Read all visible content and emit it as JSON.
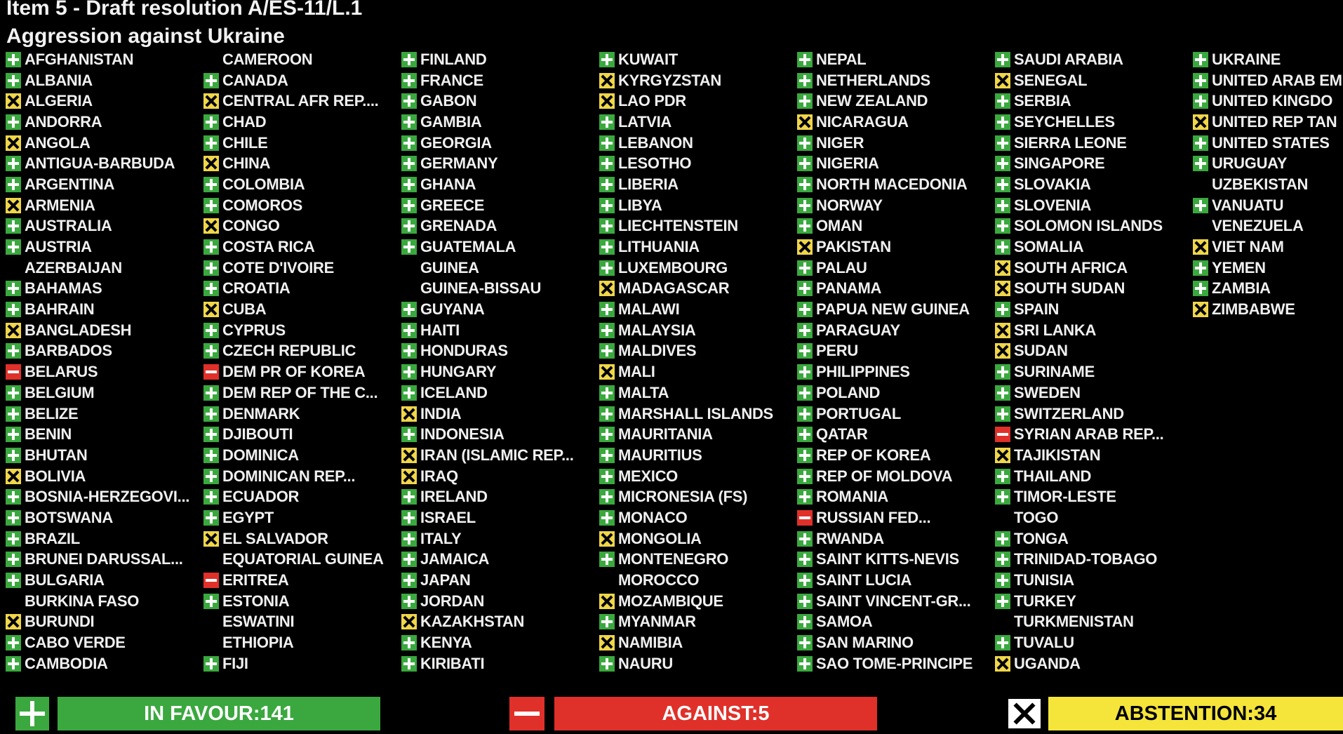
{
  "header": {
    "title": "Item 5 - Draft resolution A/ES-11/L.1",
    "subtitle": "Aggression against Ukraine"
  },
  "colors": {
    "yes": "#3aa83e",
    "no": "#e0302a",
    "abstain": "#efd64a",
    "board": "#000000"
  },
  "columns": [
    [
      {
        "name": "AFGHANISTAN",
        "vote": "Y"
      },
      {
        "name": "ALBANIA",
        "vote": "Y"
      },
      {
        "name": "ALGERIA",
        "vote": "A"
      },
      {
        "name": "ANDORRA",
        "vote": "Y"
      },
      {
        "name": "ANGOLA",
        "vote": "A"
      },
      {
        "name": "ANTIGUA-BARBUDA",
        "vote": "Y"
      },
      {
        "name": "ARGENTINA",
        "vote": "Y"
      },
      {
        "name": "ARMENIA",
        "vote": "A"
      },
      {
        "name": "AUSTRALIA",
        "vote": "Y"
      },
      {
        "name": "AUSTRIA",
        "vote": "Y"
      },
      {
        "name": "AZERBAIJAN",
        "vote": ""
      },
      {
        "name": "BAHAMAS",
        "vote": "Y"
      },
      {
        "name": "BAHRAIN",
        "vote": "Y"
      },
      {
        "name": "BANGLADESH",
        "vote": "A"
      },
      {
        "name": "BARBADOS",
        "vote": "Y"
      },
      {
        "name": "BELARUS",
        "vote": "N"
      },
      {
        "name": "BELGIUM",
        "vote": "Y"
      },
      {
        "name": "BELIZE",
        "vote": "Y"
      },
      {
        "name": "BENIN",
        "vote": "Y"
      },
      {
        "name": "BHUTAN",
        "vote": "Y"
      },
      {
        "name": "BOLIVIA",
        "vote": "A"
      },
      {
        "name": "BOSNIA-HERZEGOVI...",
        "vote": "Y"
      },
      {
        "name": "BOTSWANA",
        "vote": "Y"
      },
      {
        "name": "BRAZIL",
        "vote": "Y"
      },
      {
        "name": "BRUNEI DARUSSAL...",
        "vote": "Y"
      },
      {
        "name": "BULGARIA",
        "vote": "Y"
      },
      {
        "name": "BURKINA FASO",
        "vote": ""
      },
      {
        "name": "BURUNDI",
        "vote": "A"
      },
      {
        "name": "CABO VERDE",
        "vote": "Y"
      },
      {
        "name": "CAMBODIA",
        "vote": "Y"
      }
    ],
    [
      {
        "name": "CAMEROON",
        "vote": ""
      },
      {
        "name": "CANADA",
        "vote": "Y"
      },
      {
        "name": "CENTRAL AFR REP....",
        "vote": "A"
      },
      {
        "name": "CHAD",
        "vote": "Y"
      },
      {
        "name": "CHILE",
        "vote": "Y"
      },
      {
        "name": "CHINA",
        "vote": "A"
      },
      {
        "name": "COLOMBIA",
        "vote": "Y"
      },
      {
        "name": "COMOROS",
        "vote": "Y"
      },
      {
        "name": "CONGO",
        "vote": "A"
      },
      {
        "name": "COSTA RICA",
        "vote": "Y"
      },
      {
        "name": "COTE D'IVOIRE",
        "vote": "Y"
      },
      {
        "name": "CROATIA",
        "vote": "Y"
      },
      {
        "name": "CUBA",
        "vote": "A"
      },
      {
        "name": "CYPRUS",
        "vote": "Y"
      },
      {
        "name": "CZECH REPUBLIC",
        "vote": "Y"
      },
      {
        "name": "DEM PR OF KOREA",
        "vote": "N"
      },
      {
        "name": "DEM REP OF THE C...",
        "vote": "Y"
      },
      {
        "name": "DENMARK",
        "vote": "Y"
      },
      {
        "name": "DJIBOUTI",
        "vote": "Y"
      },
      {
        "name": "DOMINICA",
        "vote": "Y"
      },
      {
        "name": "DOMINICAN REP...",
        "vote": "Y"
      },
      {
        "name": "ECUADOR",
        "vote": "Y"
      },
      {
        "name": "EGYPT",
        "vote": "Y"
      },
      {
        "name": "EL SALVADOR",
        "vote": "A"
      },
      {
        "name": "EQUATORIAL GUINEA",
        "vote": ""
      },
      {
        "name": "ERITREA",
        "vote": "N"
      },
      {
        "name": "ESTONIA",
        "vote": "Y"
      },
      {
        "name": "ESWATINI",
        "vote": ""
      },
      {
        "name": "ETHIOPIA",
        "vote": ""
      },
      {
        "name": "FIJI",
        "vote": "Y"
      }
    ],
    [
      {
        "name": "FINLAND",
        "vote": "Y"
      },
      {
        "name": "FRANCE",
        "vote": "Y"
      },
      {
        "name": "GABON",
        "vote": "Y"
      },
      {
        "name": "GAMBIA",
        "vote": "Y"
      },
      {
        "name": "GEORGIA",
        "vote": "Y"
      },
      {
        "name": "GERMANY",
        "vote": "Y"
      },
      {
        "name": "GHANA",
        "vote": "Y"
      },
      {
        "name": "GREECE",
        "vote": "Y"
      },
      {
        "name": "GRENADA",
        "vote": "Y"
      },
      {
        "name": "GUATEMALA",
        "vote": "Y"
      },
      {
        "name": "GUINEA",
        "vote": ""
      },
      {
        "name": "GUINEA-BISSAU",
        "vote": ""
      },
      {
        "name": "GUYANA",
        "vote": "Y"
      },
      {
        "name": "HAITI",
        "vote": "Y"
      },
      {
        "name": "HONDURAS",
        "vote": "Y"
      },
      {
        "name": "HUNGARY",
        "vote": "Y"
      },
      {
        "name": "ICELAND",
        "vote": "Y"
      },
      {
        "name": "INDIA",
        "vote": "A"
      },
      {
        "name": "INDONESIA",
        "vote": "Y"
      },
      {
        "name": "IRAN (ISLAMIC REP...",
        "vote": "A"
      },
      {
        "name": "IRAQ",
        "vote": "A"
      },
      {
        "name": "IRELAND",
        "vote": "Y"
      },
      {
        "name": "ISRAEL",
        "vote": "Y"
      },
      {
        "name": "ITALY",
        "vote": "Y"
      },
      {
        "name": "JAMAICA",
        "vote": "Y"
      },
      {
        "name": "JAPAN",
        "vote": "Y"
      },
      {
        "name": "JORDAN",
        "vote": "Y"
      },
      {
        "name": "KAZAKHSTAN",
        "vote": "A"
      },
      {
        "name": "KENYA",
        "vote": "Y"
      },
      {
        "name": "KIRIBATI",
        "vote": "Y"
      }
    ],
    [
      {
        "name": "KUWAIT",
        "vote": "Y"
      },
      {
        "name": "KYRGYZSTAN",
        "vote": "A"
      },
      {
        "name": "LAO PDR",
        "vote": "A"
      },
      {
        "name": "LATVIA",
        "vote": "Y"
      },
      {
        "name": "LEBANON",
        "vote": "Y"
      },
      {
        "name": "LESOTHO",
        "vote": "Y"
      },
      {
        "name": "LIBERIA",
        "vote": "Y"
      },
      {
        "name": "LIBYA",
        "vote": "Y"
      },
      {
        "name": "LIECHTENSTEIN",
        "vote": "Y"
      },
      {
        "name": "LITHUANIA",
        "vote": "Y"
      },
      {
        "name": "LUXEMBOURG",
        "vote": "Y"
      },
      {
        "name": "MADAGASCAR",
        "vote": "A"
      },
      {
        "name": "MALAWI",
        "vote": "Y"
      },
      {
        "name": "MALAYSIA",
        "vote": "Y"
      },
      {
        "name": "MALDIVES",
        "vote": "Y"
      },
      {
        "name": "MALI",
        "vote": "A"
      },
      {
        "name": "MALTA",
        "vote": "Y"
      },
      {
        "name": "MARSHALL ISLANDS",
        "vote": "Y"
      },
      {
        "name": "MAURITANIA",
        "vote": "Y"
      },
      {
        "name": "MAURITIUS",
        "vote": "Y"
      },
      {
        "name": "MEXICO",
        "vote": "Y"
      },
      {
        "name": "MICRONESIA (FS)",
        "vote": "Y"
      },
      {
        "name": "MONACO",
        "vote": "Y"
      },
      {
        "name": "MONGOLIA",
        "vote": "A"
      },
      {
        "name": "MONTENEGRO",
        "vote": "Y"
      },
      {
        "name": "MOROCCO",
        "vote": ""
      },
      {
        "name": "MOZAMBIQUE",
        "vote": "A"
      },
      {
        "name": "MYANMAR",
        "vote": "Y"
      },
      {
        "name": "NAMIBIA",
        "vote": "A"
      },
      {
        "name": "NAURU",
        "vote": "Y"
      }
    ],
    [
      {
        "name": "NEPAL",
        "vote": "Y"
      },
      {
        "name": "NETHERLANDS",
        "vote": "Y"
      },
      {
        "name": "NEW ZEALAND",
        "vote": "Y"
      },
      {
        "name": "NICARAGUA",
        "vote": "A"
      },
      {
        "name": "NIGER",
        "vote": "Y"
      },
      {
        "name": "NIGERIA",
        "vote": "Y"
      },
      {
        "name": "NORTH MACEDONIA",
        "vote": "Y"
      },
      {
        "name": "NORWAY",
        "vote": "Y"
      },
      {
        "name": "OMAN",
        "vote": "Y"
      },
      {
        "name": "PAKISTAN",
        "vote": "A"
      },
      {
        "name": "PALAU",
        "vote": "Y"
      },
      {
        "name": "PANAMA",
        "vote": "Y"
      },
      {
        "name": "PAPUA NEW GUINEA",
        "vote": "Y"
      },
      {
        "name": "PARAGUAY",
        "vote": "Y"
      },
      {
        "name": "PERU",
        "vote": "Y"
      },
      {
        "name": "PHILIPPINES",
        "vote": "Y"
      },
      {
        "name": "POLAND",
        "vote": "Y"
      },
      {
        "name": "PORTUGAL",
        "vote": "Y"
      },
      {
        "name": "QATAR",
        "vote": "Y"
      },
      {
        "name": "REP OF KOREA",
        "vote": "Y"
      },
      {
        "name": "REP OF MOLDOVA",
        "vote": "Y"
      },
      {
        "name": "ROMANIA",
        "vote": "Y"
      },
      {
        "name": "RUSSIAN FED...",
        "vote": "N"
      },
      {
        "name": "RWANDA",
        "vote": "Y"
      },
      {
        "name": "SAINT KITTS-NEVIS",
        "vote": "Y"
      },
      {
        "name": "SAINT LUCIA",
        "vote": "Y"
      },
      {
        "name": "SAINT VINCENT-GR...",
        "vote": "Y"
      },
      {
        "name": "SAMOA",
        "vote": "Y"
      },
      {
        "name": "SAN MARINO",
        "vote": "Y"
      },
      {
        "name": "SAO TOME-PRINCIPE",
        "vote": "Y"
      }
    ],
    [
      {
        "name": "SAUDI ARABIA",
        "vote": "Y"
      },
      {
        "name": "SENEGAL",
        "vote": "A"
      },
      {
        "name": "SERBIA",
        "vote": "Y"
      },
      {
        "name": "SEYCHELLES",
        "vote": "Y"
      },
      {
        "name": "SIERRA LEONE",
        "vote": "Y"
      },
      {
        "name": "SINGAPORE",
        "vote": "Y"
      },
      {
        "name": "SLOVAKIA",
        "vote": "Y"
      },
      {
        "name": "SLOVENIA",
        "vote": "Y"
      },
      {
        "name": "SOLOMON ISLANDS",
        "vote": "Y"
      },
      {
        "name": "SOMALIA",
        "vote": "Y"
      },
      {
        "name": "SOUTH AFRICA",
        "vote": "A"
      },
      {
        "name": "SOUTH SUDAN",
        "vote": "A"
      },
      {
        "name": "SPAIN",
        "vote": "Y"
      },
      {
        "name": "SRI LANKA",
        "vote": "A"
      },
      {
        "name": "SUDAN",
        "vote": "A"
      },
      {
        "name": "SURINAME",
        "vote": "Y"
      },
      {
        "name": "SWEDEN",
        "vote": "Y"
      },
      {
        "name": "SWITZERLAND",
        "vote": "Y"
      },
      {
        "name": "SYRIAN ARAB REP...",
        "vote": "N"
      },
      {
        "name": "TAJIKISTAN",
        "vote": "A"
      },
      {
        "name": "THAILAND",
        "vote": "Y"
      },
      {
        "name": "TIMOR-LESTE",
        "vote": "Y"
      },
      {
        "name": "TOGO",
        "vote": ""
      },
      {
        "name": "TONGA",
        "vote": "Y"
      },
      {
        "name": "TRINIDAD-TOBAGO",
        "vote": "Y"
      },
      {
        "name": "TUNISIA",
        "vote": "Y"
      },
      {
        "name": "TURKEY",
        "vote": "Y"
      },
      {
        "name": "TURKMENISTAN",
        "vote": ""
      },
      {
        "name": "TUVALU",
        "vote": "Y"
      },
      {
        "name": "UGANDA",
        "vote": "A"
      }
    ],
    [
      {
        "name": "UKRAINE",
        "vote": "Y"
      },
      {
        "name": "UNITED ARAB EM",
        "vote": "Y"
      },
      {
        "name": "UNITED KINGDO",
        "vote": "Y"
      },
      {
        "name": "UNITED REP TAN",
        "vote": "A"
      },
      {
        "name": "UNITED STATES",
        "vote": "Y"
      },
      {
        "name": "URUGUAY",
        "vote": "Y"
      },
      {
        "name": "UZBEKISTAN",
        "vote": ""
      },
      {
        "name": "VANUATU",
        "vote": "Y"
      },
      {
        "name": "VENEZUELA",
        "vote": ""
      },
      {
        "name": "VIET NAM",
        "vote": "A"
      },
      {
        "name": "YEMEN",
        "vote": "Y"
      },
      {
        "name": "ZAMBIA",
        "vote": "Y"
      },
      {
        "name": "ZIMBABWE",
        "vote": "A"
      }
    ]
  ],
  "totals": {
    "in_favour": "IN FAVOUR:141",
    "against": "AGAINST:5",
    "abstention": "ABSTENTION:34"
  }
}
